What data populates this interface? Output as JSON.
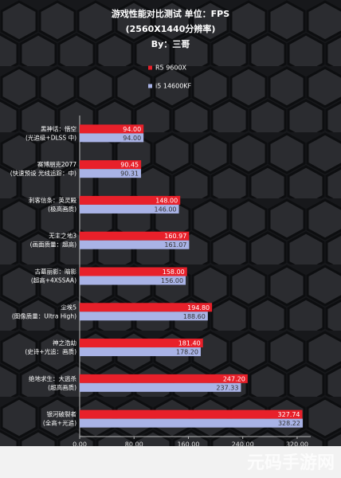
{
  "chart_data": {
    "type": "hbar",
    "title": [
      "游戏性能对比测试 单位：FPS",
      "(2560X1440分辨率)",
      "By：三哥"
    ],
    "categories": [
      [
        "黑神话：悟空",
        "(光追级+DLSS 中)"
      ],
      [
        "赛博朋克2077",
        "(快速预设 光线追踪：中)"
      ],
      [
        "刺客信条：英灵殿",
        "(极高画质)"
      ],
      [
        "无主之地3",
        "(画面质量：超高)"
      ],
      [
        "古墓丽影：暗影",
        "(超高+4XSSAA)"
      ],
      [
        "尘埃5",
        "(图像质量：Ultra High)"
      ],
      [
        "神之浩劫",
        "(史诗+光追：画质)"
      ],
      [
        "绝地求生：大逃杀",
        "(超高画质)"
      ],
      [
        "银河破裂者",
        "(全高+光追)"
      ]
    ],
    "series": [
      {
        "name": "R5 9600X",
        "color": "#e8202a",
        "values": [
          94,
          90.45,
          148,
          160.97,
          158,
          194.8,
          181.4,
          247.2,
          327.74
        ],
        "value_labels": [
          "94.00",
          "90.45",
          "148.00",
          "160.97",
          "158.00",
          "194.80",
          "181.40",
          "247.20",
          "327.74"
        ]
      },
      {
        "name": "i5 14600KF",
        "color": "#a9b3e6",
        "values": [
          94,
          90.31,
          146,
          161.07,
          156,
          188.6,
          178.2,
          237.33,
          328.22
        ],
        "value_labels": [
          "94.00",
          "90.31",
          "146.00",
          "161.07",
          "156.00",
          "188.60",
          "178.20",
          "237.33",
          "328.22"
        ]
      }
    ],
    "xlim": [
      0,
      340
    ],
    "xticks": [
      {
        "value": 0,
        "label": "0.00"
      },
      {
        "value": 80,
        "label": "80.00"
      },
      {
        "value": 160,
        "label": "160.00"
      },
      {
        "value": 240,
        "label": "240.00"
      },
      {
        "value": 320,
        "label": "320.00"
      }
    ],
    "watermark": "元码手游网"
  }
}
